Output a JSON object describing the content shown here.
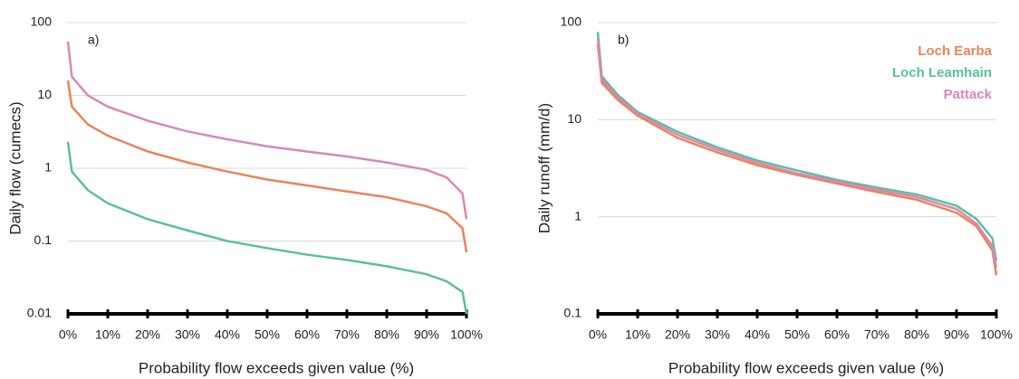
{
  "chart_data": [
    {
      "type": "line",
      "annotation": "a)",
      "ylabel": "Daily flow (cumecs)",
      "xlabel": "Probability flow exceeds given value (%)",
      "log_y": true,
      "grid": true,
      "xlim": [
        0,
        100
      ],
      "ylim": [
        0.01,
        100
      ],
      "yticks": [
        0.01,
        0.1,
        1,
        10,
        100
      ],
      "xticks": [
        {
          "value": 0,
          "label": "0%"
        },
        {
          "value": 10,
          "label": "10%"
        },
        {
          "value": 20,
          "label": "20%"
        },
        {
          "value": 30,
          "label": "30%"
        },
        {
          "value": 40,
          "label": "40%"
        },
        {
          "value": 50,
          "label": "50%"
        },
        {
          "value": 60,
          "label": "60%"
        },
        {
          "value": 70,
          "label": "70%"
        },
        {
          "value": 80,
          "label": "80%"
        },
        {
          "value": 90,
          "label": "90%"
        },
        {
          "value": 100,
          "label": "100%"
        }
      ],
      "x": [
        0,
        1,
        5,
        10,
        20,
        30,
        40,
        50,
        60,
        70,
        80,
        90,
        95,
        99,
        100
      ],
      "series": [
        {
          "color": "#d987b8",
          "values": [
            55,
            18,
            10,
            7,
            4.5,
            3.2,
            2.5,
            2,
            1.7,
            1.45,
            1.2,
            0.95,
            0.75,
            0.45,
            0.2
          ]
        },
        {
          "color": "#ec8358",
          "values": [
            16,
            7,
            4,
            2.8,
            1.7,
            1.2,
            0.9,
            0.7,
            0.58,
            0.48,
            0.4,
            0.3,
            0.24,
            0.15,
            0.07
          ]
        },
        {
          "color": "#5cbf9c",
          "values": [
            2.3,
            0.9,
            0.5,
            0.33,
            0.2,
            0.14,
            0.1,
            0.08,
            0.065,
            0.055,
            0.045,
            0.035,
            0.028,
            0.02,
            0.01
          ]
        }
      ]
    },
    {
      "type": "line",
      "annotation": "b)",
      "ylabel": "Daily runoff (mm/d)",
      "xlabel": "Probability flow exceeds given value (%)",
      "log_y": true,
      "grid": true,
      "legend": "upper right",
      "xlim": [
        0,
        100
      ],
      "ylim": [
        0.1,
        100
      ],
      "yticks": [
        0.1,
        1,
        10,
        100
      ],
      "xticks": [
        {
          "value": 0,
          "label": "0%"
        },
        {
          "value": 10,
          "label": "10%"
        },
        {
          "value": 20,
          "label": "20%"
        },
        {
          "value": 30,
          "label": "30%"
        },
        {
          "value": 40,
          "label": "40%"
        },
        {
          "value": 50,
          "label": "50%"
        },
        {
          "value": 60,
          "label": "60%"
        },
        {
          "value": 70,
          "label": "70%"
        },
        {
          "value": 80,
          "label": "80%"
        },
        {
          "value": 90,
          "label": "90%"
        },
        {
          "value": 100,
          "label": "100%"
        }
      ],
      "x": [
        0,
        1,
        5,
        10,
        20,
        30,
        40,
        50,
        60,
        70,
        80,
        90,
        95,
        99,
        100
      ],
      "series": [
        {
          "name": "Loch Earba",
          "color": "#ec8358",
          "values": [
            60,
            24,
            16,
            11,
            6.5,
            4.6,
            3.4,
            2.7,
            2.2,
            1.8,
            1.5,
            1.1,
            0.8,
            0.45,
            0.25
          ]
        },
        {
          "name": "Loch Leamhain",
          "color": "#5cbf9c",
          "values": [
            80,
            28,
            18,
            12,
            7.5,
            5.2,
            3.8,
            3,
            2.4,
            2,
            1.7,
            1.3,
            0.95,
            0.6,
            0.35
          ]
        },
        {
          "name": "Pattack",
          "color": "#d987b8",
          "values": [
            70,
            26,
            17,
            11.5,
            7,
            4.9,
            3.6,
            2.8,
            2.3,
            1.9,
            1.6,
            1.2,
            0.85,
            0.5,
            0.3
          ]
        }
      ]
    }
  ]
}
